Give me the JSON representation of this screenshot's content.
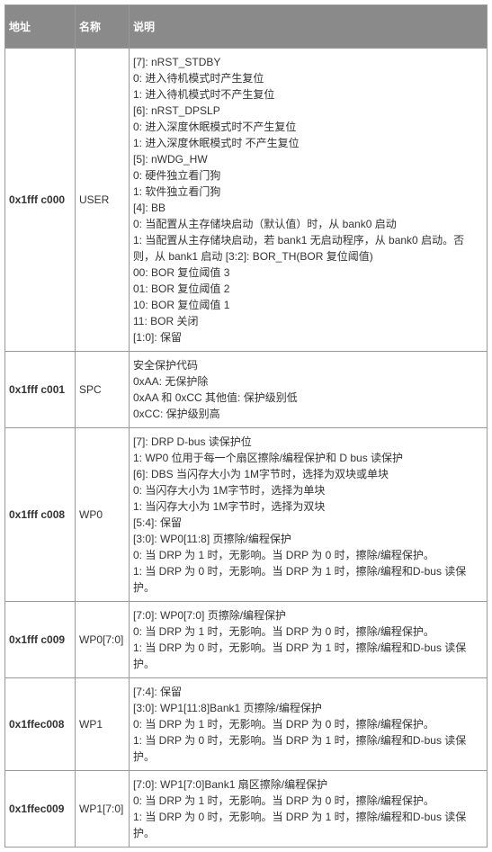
{
  "headers": {
    "addr": "地址",
    "name": "名称",
    "desc": "说明"
  },
  "rows": [
    {
      "addr": "0x1fff c000",
      "name": "USER",
      "desc": "[7]: nRST_STDBY\n0: 进入待机模式时产生复位\n1: 进入待机模式时不产生复位\n[6]: nRST_DPSLP\n0: 进入深度休眠模式时不产生复位\n1: 进入深度休眠模式时 不产生复位\n[5]: nWDG_HW\n0: 硬件独立看门狗\n1: 软件独立看门狗\n[4]: BB\n0: 当配置从主存储块启动（默认值）时，从 bank0 启动\n1: 当配置从主存储块启动，若 bank1 无启动程序，从 bank0 启动。否则，从 bank1 启动 [3:2]: BOR_TH(BOR 复位阈值)\n00: BOR 复位阈值 3\n01: BOR 复位阈值 2\n10: BOR 复位阈值 1\n11: BOR 关闭\n[1:0]: 保留"
    },
    {
      "addr": "0x1fff c001",
      "name": "SPC",
      "desc": "安全保护代码\n0xAA: 无保护除\n0xAA 和 0xCC 其他值: 保护级别低\n0xCC: 保护级别高"
    },
    {
      "addr": "0x1fff c008",
      "name": "WP0",
      "desc": "[7]: DRP  D-bus 读保护位\n1: WP0 位用于每一个扇区擦除/编程保护和 D bus 读保护\n[6]: DBS 当闪存大小为 1M字节时，选择为双块或单块\n0: 当闪存大小为 1M字节时，选择为单块\n1: 当闪存大小为 1M字节时，选择为双块\n[5:4]: 保留\n[3:0]: WP0[11:8] 页擦除/编程保护\n0: 当 DRP 为 1 时，无影响。当 DRP 为 0 时，擦除/编程保护。\n1: 当 DRP 为 0 时，无影响。当 DRP 为 1 时，擦除/编程和D-bus 读保护。"
    },
    {
      "addr": "0x1fff c009",
      "name": "WP0[7:0]",
      "desc": "[7:0]: WP0[7:0] 页擦除/编程保护\n0: 当 DRP 为 1 时，无影响。当 DRP 为 0 时，擦除/编程保护。\n1: 当 DRP 为 0 时，无影响。当 DRP 为 1 时，擦除/编程和D-bus 读保护。"
    },
    {
      "addr": "0x1ffec008",
      "name": "WP1",
      "desc": "[7:4]: 保留\n[3:0]: WP1[11:8]Bank1 页擦除/编程保护\n0: 当 DRP 为 1 时，无影响。当 DRP 为 0 时，擦除/编程保护。\n1: 当 DRP 为 0 时，无影响。当 DRP 为 1 时，擦除/编程和D-bus 读保护。"
    },
    {
      "addr": "0x1ffec009",
      "name": "WP1[7:0]",
      "desc": "[7:0]: WP1[7:0]Bank1 扇区擦除/编程保护\n0: 当 DRP 为 1 时，无影响。当 DRP 为 0 时，擦除/编程保护。\n1: 当 DRP 为 0 时，无影响。当 DRP 为 1 时，擦除/编程和D-bus 读保护。"
    }
  ]
}
